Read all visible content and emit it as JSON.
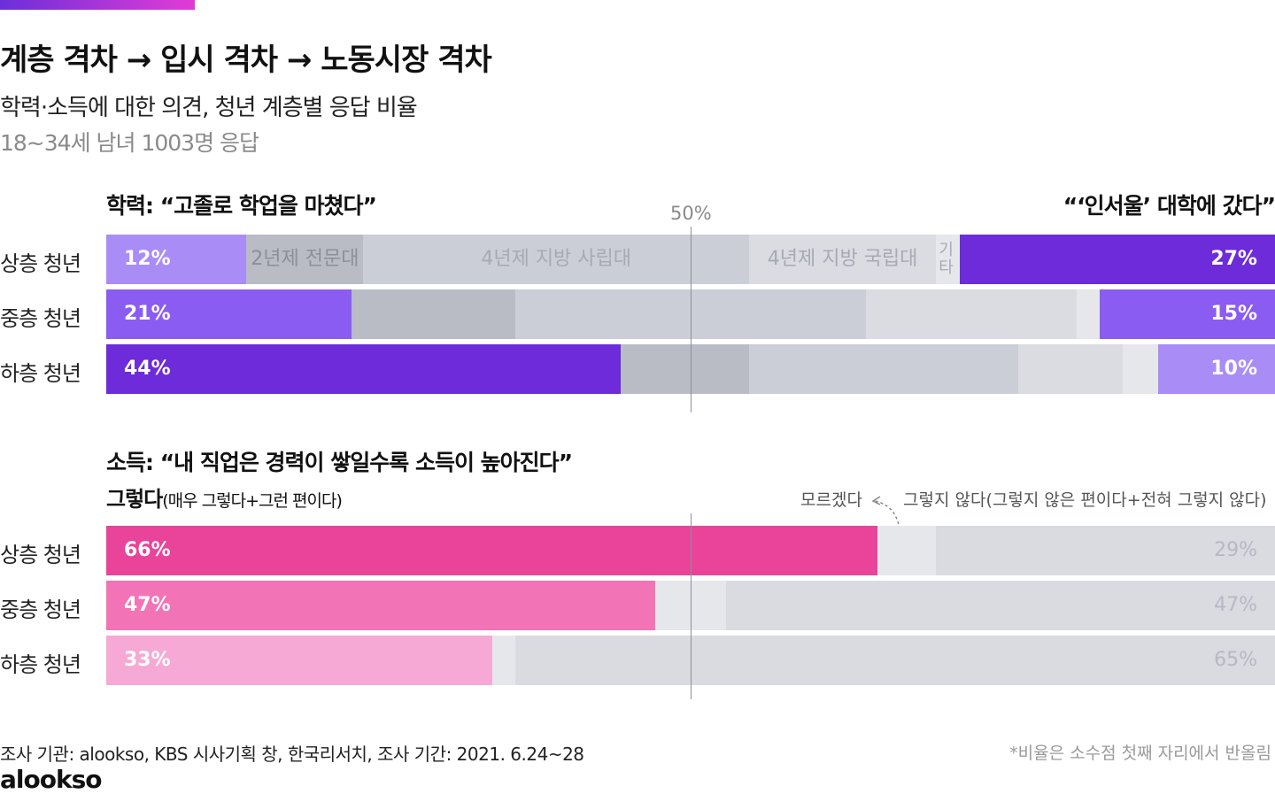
{
  "header": {
    "title": "계층 격차 → 입시 격차 → 노동시장 격차",
    "subtitle": "학력·소득에 대한 의견, 청년 계층별 응답 비율",
    "note": "18~34세 남녀 1003명 응답"
  },
  "colors": {
    "edu_low": "#a98cf6",
    "edu_mid": "#8a5cf1",
    "edu_high": "#6d2bd9",
    "edu_cat1": "#b9bcc5",
    "edu_cat2": "#cbced6",
    "edu_cat3": "#dadce2",
    "edu_cat4": "#e6e7eb",
    "inc_high": "#e9439a",
    "inc_mid": "#f274b6",
    "inc_low": "#f6a9d4",
    "inc_dk": "#e6e7eb",
    "inc_dis": "#d9dbe1"
  },
  "chart_data": [
    {
      "type": "bar",
      "stacked": true,
      "orientation": "horizontal",
      "title": "학력: “고졸로 학업을 마쳤다”",
      "right_title": "“‘인서울’ 대학에 갔다”",
      "midpoint_label": "50%",
      "xlim": [
        0,
        100
      ],
      "categories": [
        "상층 청년",
        "중층 청년",
        "하층 청년"
      ],
      "series": [
        {
          "name": "고졸",
          "values": [
            12,
            21,
            44
          ],
          "labels": [
            "12%",
            "21%",
            "44%"
          ]
        },
        {
          "name": "2년제 전문대",
          "values": [
            10,
            14,
            11
          ]
        },
        {
          "name": "4년제 지방 사립대",
          "values": [
            33,
            30,
            23
          ]
        },
        {
          "name": "4년제 지방 국립대",
          "values": [
            16,
            18,
            9
          ]
        },
        {
          "name": "기타",
          "values": [
            2,
            2,
            3
          ]
        },
        {
          "name": "인서울 대학",
          "values": [
            27,
            15,
            10
          ],
          "labels": [
            "27%",
            "15%",
            "10%"
          ]
        }
      ],
      "segment_labels": [
        "2년제 전문대",
        "4년제 지방 사립대",
        "4년제 지방 국립대",
        "기\n타"
      ]
    },
    {
      "type": "bar",
      "stacked": true,
      "orientation": "horizontal",
      "title": "소득: “내 직업은 경력이 쌓일수록 소득이 높아진다”",
      "agree_label": "그렇다",
      "agree_sub": "(매우 그렇다+그런 편이다)",
      "dk_label": "모르겠다",
      "disagree_label": "그렇지 않다(그렇지 않은 편이다+전혀 그렇지 않다)",
      "xlim": [
        0,
        100
      ],
      "categories": [
        "상층 청년",
        "중층 청년",
        "하층 청년"
      ],
      "series": [
        {
          "name": "그렇다",
          "values": [
            66,
            47,
            33
          ],
          "labels": [
            "66%",
            "47%",
            "33%"
          ]
        },
        {
          "name": "모르겠다",
          "values": [
            5,
            6,
            2
          ]
        },
        {
          "name": "그렇지 않다",
          "values": [
            29,
            47,
            65
          ],
          "labels": [
            "29%",
            "47%",
            "65%"
          ]
        }
      ]
    }
  ],
  "footer": {
    "source": "조사 기관: alookso, KBS 시사기획 창, 한국리서치, 조사 기간: 2021. 6.24~28",
    "footnote": "*비율은 소수점 첫째 자리에서 반올림",
    "logo": "alookso"
  }
}
